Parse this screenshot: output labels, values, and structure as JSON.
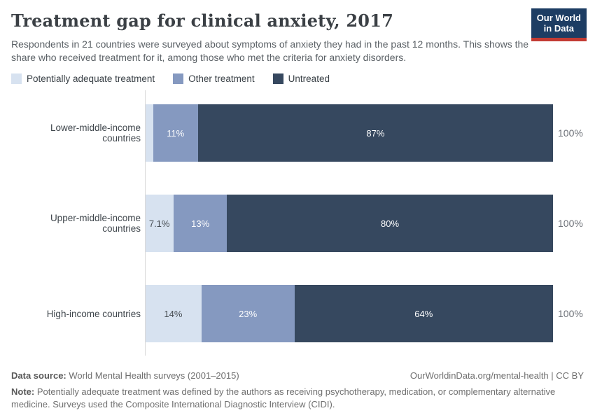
{
  "header": {
    "title": "Treatment gap for clinical anxiety, 2017",
    "subtitle": "Respondents in 21 countries were surveyed about symptoms of anxiety they had in the past 12 months. This shows the share who received treatment for it, among those who met the criteria for anxiety disorders.",
    "logo": {
      "line1": "Our World",
      "line2": "in Data",
      "bg_color": "#1d3d63",
      "accent_color": "#c23b33"
    }
  },
  "legend": [
    {
      "label": "Potentially adequate treatment",
      "color": "#d7e2f0"
    },
    {
      "label": "Other treatment",
      "color": "#8599c0"
    },
    {
      "label": "Untreated",
      "color": "#36485f"
    }
  ],
  "chart_data": {
    "type": "bar",
    "orientation": "horizontal",
    "stacked": true,
    "unit": "%",
    "xlim": [
      0,
      100
    ],
    "grid": false,
    "legend_position": "top",
    "categories": [
      "Lower-middle-income countries",
      "Upper-middle-income countries",
      "High-income countries"
    ],
    "series": [
      {
        "name": "Potentially adequate treatment",
        "color": "#d7e2f0",
        "label_color": "#464c52",
        "values": [
          2,
          7.1,
          14
        ],
        "labels": [
          "",
          "7.1%",
          "14%"
        ]
      },
      {
        "name": "Other treatment",
        "color": "#8599c0",
        "label_color": "#ffffff",
        "values": [
          11,
          13,
          23
        ],
        "labels": [
          "11%",
          "13%",
          "23%"
        ]
      },
      {
        "name": "Untreated",
        "color": "#36485f",
        "label_color": "#ffffff",
        "values": [
          87,
          80,
          64
        ],
        "labels": [
          "87%",
          "80%",
          "64%"
        ]
      }
    ],
    "totals": [
      "100%",
      "100%",
      "100%"
    ]
  },
  "footer": {
    "source_label": "Data source:",
    "source_text": "World Mental Health surveys (2001–2015)",
    "link": "OurWorldinData.org/mental-health | CC BY",
    "note_label": "Note:",
    "note_text": "Potentially adequate treatment was defined by the authors as receiving psychotherapy, medication, or complementary alternative medicine. Surveys used the Composite International Diagnostic Interview (CIDI)."
  }
}
